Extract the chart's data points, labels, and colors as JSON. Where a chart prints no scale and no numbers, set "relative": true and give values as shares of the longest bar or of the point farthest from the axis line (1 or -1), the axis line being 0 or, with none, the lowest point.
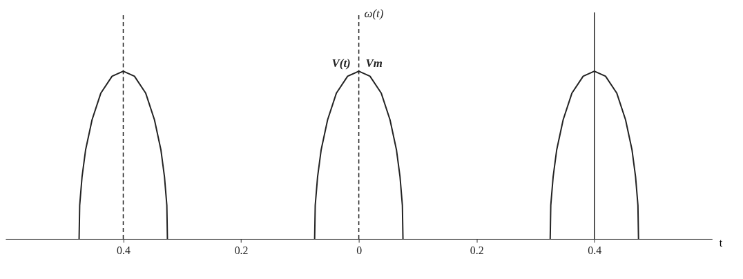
{
  "chart_data": {
    "type": "line",
    "relative": true,
    "xlabel": "t",
    "xlim": [
      -0.6,
      0.6
    ],
    "xticks": [
      {
        "value": -0.4,
        "label": "0.4"
      },
      {
        "value": -0.2,
        "label": "0.2"
      },
      0,
      0.2,
      0.4
    ],
    "series": [
      {
        "color": "#222222",
        "x": [
          -0.475,
          -0.474,
          -0.47,
          -0.464,
          -0.453,
          -0.438,
          -0.419,
          -0.4,
          -0.381,
          -0.362,
          -0.347,
          -0.336,
          -0.33,
          -0.326,
          -0.325
        ],
        "values": [
          0,
          0.2,
          0.37,
          0.53,
          0.71,
          0.87,
          0.97,
          1,
          0.97,
          0.87,
          0.71,
          0.53,
          0.37,
          0.2,
          0
        ]
      },
      {
        "color": "#222222",
        "x": [
          -0.075,
          -0.074,
          -0.07,
          -0.064,
          -0.053,
          -0.038,
          -0.019,
          0,
          0.019,
          0.038,
          0.053,
          0.064,
          0.07,
          0.074,
          0.075
        ],
        "values": [
          0,
          0.2,
          0.37,
          0.53,
          0.71,
          0.87,
          0.97,
          1,
          0.97,
          0.87,
          0.71,
          0.53,
          0.37,
          0.2,
          0
        ]
      },
      {
        "color": "#222222",
        "x": [
          0.325,
          0.326,
          0.33,
          0.336,
          0.347,
          0.362,
          0.381,
          0.4,
          0.419,
          0.438,
          0.453,
          0.464,
          0.47,
          0.474,
          0.475
        ],
        "values": [
          0,
          0.2,
          0.37,
          0.53,
          0.71,
          0.87,
          0.97,
          1,
          0.97,
          0.87,
          0.71,
          0.53,
          0.37,
          0.2,
          0
        ]
      }
    ],
    "ref_lines": [
      {
        "axis": "x",
        "value": -0.4,
        "label": null,
        "color": "#222222",
        "line_style": "dashed"
      },
      {
        "axis": "x",
        "value": 0,
        "label": "ω(t)",
        "color": "#222222",
        "line_style": "dashed"
      },
      {
        "axis": "x",
        "value": 0.4,
        "label": null,
        "color": "#222222",
        "line_style": "solid"
      }
    ],
    "annotations": [
      {
        "text": "V(t)",
        "x": 0,
        "y": 1
      },
      {
        "text": "Vm",
        "x": 0,
        "y": 1
      }
    ],
    "line_style": "solid",
    "marker": "none",
    "grid": false
  }
}
